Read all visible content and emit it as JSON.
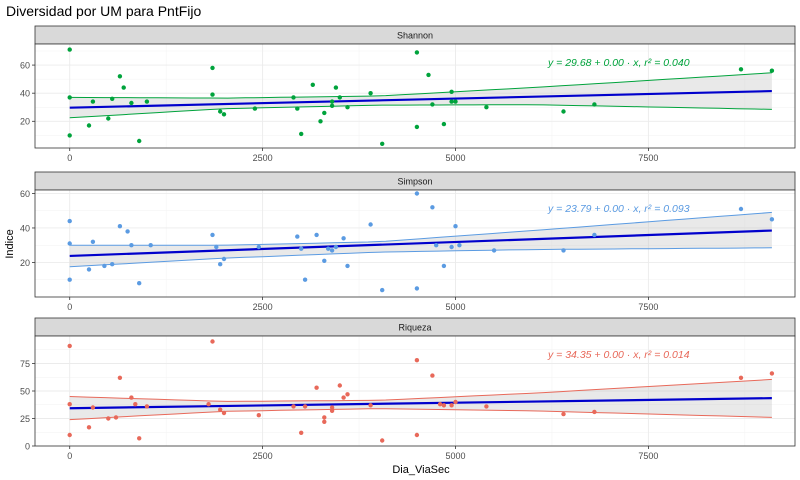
{
  "chart_data": {
    "type": "scatter",
    "title": "Diversidad por UM para PntFijo",
    "xlabel": "Dia_ViaSec",
    "ylabel": "Indice",
    "x_ticks": [
      0,
      2500,
      5000,
      7500
    ],
    "x_tick_labels": [
      "0",
      "2500",
      "5000",
      "7500"
    ],
    "xlim": [
      -450,
      9400
    ],
    "grid": true,
    "facets": [
      {
        "label": "Shannon",
        "color": "#00A33C",
        "ylim": [
          1,
          75
        ],
        "y_ticks": [
          20,
          40,
          60
        ],
        "y_tick_labels": [
          "20",
          "40",
          "60"
        ],
        "equation_text": "y = 29.68 + 0.00 · x,  r² = 0.040",
        "fit": {
          "x0": 0,
          "y0": 29.68,
          "x1": 9100,
          "y1": 41.5
        },
        "band": {
          "upper": [
            [
              0,
              37.0
            ],
            [
              2000,
              36.5
            ],
            [
              4000,
              38.0
            ],
            [
              6000,
              44.0
            ],
            [
              9100,
              54.5
            ]
          ],
          "lower": [
            [
              0,
              22.5
            ],
            [
              2000,
              29.0
            ],
            [
              4000,
              31.5
            ],
            [
              6000,
              31.8
            ],
            [
              9100,
              28.5
            ]
          ]
        },
        "points": [
          [
            0,
            71
          ],
          [
            0,
            37
          ],
          [
            0,
            10
          ],
          [
            250,
            17
          ],
          [
            300,
            34
          ],
          [
            500,
            22
          ],
          [
            550,
            36
          ],
          [
            650,
            52
          ],
          [
            700,
            44
          ],
          [
            800,
            33
          ],
          [
            900,
            6
          ],
          [
            1000,
            34
          ],
          [
            1850,
            39
          ],
          [
            1850,
            58
          ],
          [
            1950,
            27
          ],
          [
            2000,
            25
          ],
          [
            2400,
            29
          ],
          [
            2900,
            37
          ],
          [
            2950,
            29
          ],
          [
            3000,
            11
          ],
          [
            3150,
            46
          ],
          [
            3250,
            20
          ],
          [
            3300,
            26
          ],
          [
            3400,
            34
          ],
          [
            3400,
            31
          ],
          [
            3450,
            44
          ],
          [
            3500,
            37
          ],
          [
            3600,
            30
          ],
          [
            3900,
            40
          ],
          [
            4050,
            4
          ],
          [
            4500,
            69
          ],
          [
            4500,
            16
          ],
          [
            4650,
            53
          ],
          [
            4700,
            32
          ],
          [
            4850,
            18
          ],
          [
            4950,
            34
          ],
          [
            4950,
            41
          ],
          [
            5000,
            34
          ],
          [
            5400,
            30
          ],
          [
            6400,
            27
          ],
          [
            6800,
            32
          ],
          [
            8700,
            57
          ],
          [
            9100,
            56
          ]
        ]
      },
      {
        "label": "Simpson",
        "color": "#5B9BE2",
        "ylim": [
          0,
          62
        ],
        "y_ticks": [
          20,
          40,
          60
        ],
        "y_tick_labels": [
          "20",
          "40",
          "60"
        ],
        "equation_text": "y = 23.79 + 0.00 · x,  r² = 0.093",
        "fit": {
          "x0": 0,
          "y0": 23.79,
          "x1": 9100,
          "y1": 38.5
        },
        "band": {
          "upper": [
            [
              0,
              30.0
            ],
            [
              2000,
              30.0
            ],
            [
              4000,
              32.0
            ],
            [
              6000,
              38.5
            ],
            [
              9100,
              49.0
            ]
          ],
          "lower": [
            [
              0,
              17.5
            ],
            [
              2000,
              22.5
            ],
            [
              4000,
              26.0
            ],
            [
              6000,
              27.5
            ],
            [
              9100,
              28.5
            ]
          ]
        },
        "points": [
          [
            0,
            44
          ],
          [
            0,
            31
          ],
          [
            0,
            10
          ],
          [
            250,
            16
          ],
          [
            300,
            32
          ],
          [
            450,
            18
          ],
          [
            550,
            19
          ],
          [
            650,
            41
          ],
          [
            750,
            38
          ],
          [
            800,
            30
          ],
          [
            900,
            8
          ],
          [
            1050,
            30
          ],
          [
            1850,
            36
          ],
          [
            1900,
            29
          ],
          [
            1950,
            19
          ],
          [
            2000,
            22
          ],
          [
            2450,
            29
          ],
          [
            2950,
            35
          ],
          [
            3000,
            28
          ],
          [
            3050,
            10
          ],
          [
            3200,
            36
          ],
          [
            3300,
            21
          ],
          [
            3350,
            28
          ],
          [
            3400,
            27
          ],
          [
            3450,
            29
          ],
          [
            3550,
            34
          ],
          [
            3600,
            18
          ],
          [
            3900,
            42
          ],
          [
            4050,
            4
          ],
          [
            4500,
            60
          ],
          [
            4500,
            5
          ],
          [
            4700,
            52
          ],
          [
            4750,
            30
          ],
          [
            4850,
            18
          ],
          [
            4950,
            29
          ],
          [
            5000,
            41
          ],
          [
            5050,
            30
          ],
          [
            5500,
            27
          ],
          [
            6400,
            27
          ],
          [
            6800,
            36
          ],
          [
            8700,
            51
          ],
          [
            9100,
            45
          ]
        ]
      },
      {
        "label": "Riqueza",
        "color": "#E8695A",
        "ylim": [
          0,
          100
        ],
        "y_ticks": [
          0,
          25,
          50,
          75
        ],
        "y_tick_labels": [
          "0",
          "25",
          "50",
          "75"
        ],
        "equation_text": "y = 34.35 + 0.00 · x,  r² = 0.014",
        "fit": {
          "x0": 0,
          "y0": 34.35,
          "x1": 9100,
          "y1": 43.5
        },
        "band": {
          "upper": [
            [
              0,
              45.0
            ],
            [
              2000,
              40.5
            ],
            [
              4000,
              41.5
            ],
            [
              6000,
              48.0
            ],
            [
              9100,
              60.5
            ]
          ],
          "lower": [
            [
              0,
              24.0
            ],
            [
              2000,
              31.5
            ],
            [
              4000,
              34.0
            ],
            [
              6000,
              32.0
            ],
            [
              9100,
              26.0
            ]
          ]
        },
        "points": [
          [
            0,
            91
          ],
          [
            0,
            38
          ],
          [
            0,
            10
          ],
          [
            250,
            17
          ],
          [
            300,
            35
          ],
          [
            500,
            25
          ],
          [
            600,
            26
          ],
          [
            650,
            62
          ],
          [
            800,
            44
          ],
          [
            850,
            38
          ],
          [
            900,
            7
          ],
          [
            1000,
            36
          ],
          [
            1800,
            38
          ],
          [
            1850,
            95
          ],
          [
            1950,
            33
          ],
          [
            2000,
            30
          ],
          [
            2450,
            28
          ],
          [
            2900,
            36
          ],
          [
            3000,
            12
          ],
          [
            3050,
            36
          ],
          [
            3200,
            53
          ],
          [
            3300,
            22
          ],
          [
            3300,
            26
          ],
          [
            3400,
            35
          ],
          [
            3400,
            32
          ],
          [
            3500,
            55
          ],
          [
            3550,
            44
          ],
          [
            3600,
            47
          ],
          [
            3900,
            37
          ],
          [
            4050,
            5
          ],
          [
            4500,
            78
          ],
          [
            4500,
            10
          ],
          [
            4700,
            64
          ],
          [
            4800,
            38
          ],
          [
            4850,
            37
          ],
          [
            4950,
            37
          ],
          [
            5000,
            40
          ],
          [
            5400,
            36
          ],
          [
            6400,
            29
          ],
          [
            6800,
            31
          ],
          [
            8700,
            62
          ],
          [
            9100,
            66
          ]
        ]
      }
    ]
  }
}
